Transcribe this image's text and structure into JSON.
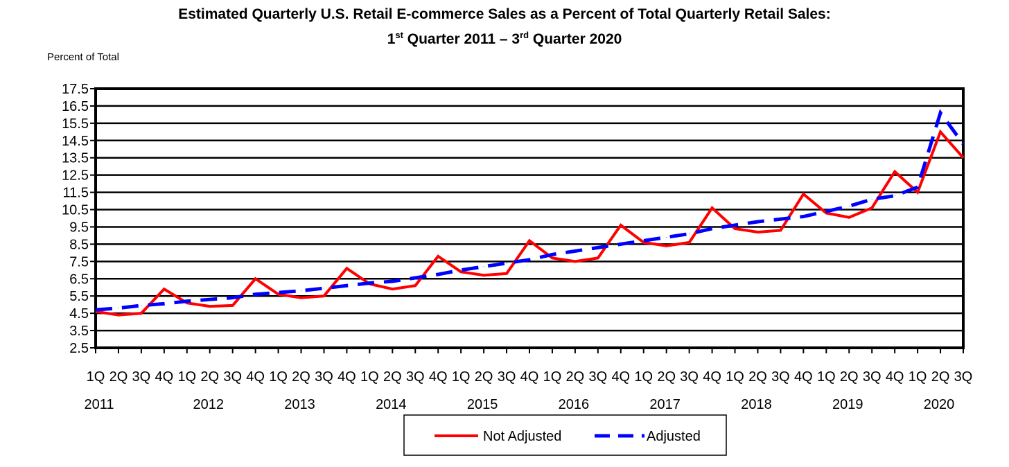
{
  "title_line1": "Estimated Quarterly U.S. Retail E-commerce Sales as a Percent of Total Quarterly Retail Sales:",
  "title_line2": {
    "part1": "1",
    "sup1": "st",
    "part2": " Quarter 2011 – 3",
    "sup2": "rd",
    "part3": " Quarter 2020"
  },
  "chart_data": {
    "type": "line",
    "title": "Estimated Quarterly U.S. Retail E-commerce Sales as a Percent of Total Quarterly Retail Sales: 1st Quarter 2011 – 3rd Quarter 2020",
    "ylabel": "Percent of Total",
    "ylim": [
      2.5,
      17.5
    ],
    "yticks": [
      2.5,
      3.5,
      4.5,
      5.5,
      6.5,
      7.5,
      8.5,
      9.5,
      10.5,
      11.5,
      12.5,
      13.5,
      14.5,
      15.5,
      16.5,
      17.5
    ],
    "grid": true,
    "legend_position": "bottom-center",
    "quarter_labels": [
      "1Q",
      "2Q",
      "3Q",
      "4Q",
      "1Q",
      "2Q",
      "3Q",
      "4Q",
      "1Q",
      "2Q",
      "3Q",
      "4Q",
      "1Q",
      "2Q",
      "3Q",
      "4Q",
      "1Q",
      "2Q",
      "3Q",
      "4Q",
      "1Q",
      "2Q",
      "3Q",
      "4Q",
      "1Q",
      "2Q",
      "3Q",
      "4Q",
      "1Q",
      "2Q",
      "3Q",
      "4Q",
      "1Q",
      "2Q",
      "3Q",
      "4Q",
      "1Q",
      "2Q",
      "3Q"
    ],
    "year_labels": [
      "2011",
      "2012",
      "2013",
      "2014",
      "2015",
      "2016",
      "2017",
      "2018",
      "2019",
      "2020"
    ],
    "series": [
      {
        "name": "Not Adjusted",
        "color": "#ff0000",
        "style": "solid",
        "values": [
          4.6,
          4.4,
          4.5,
          5.9,
          5.1,
          4.9,
          4.95,
          6.5,
          5.6,
          5.4,
          5.5,
          7.1,
          6.2,
          5.9,
          6.1,
          7.8,
          6.9,
          6.7,
          6.8,
          8.7,
          7.7,
          7.5,
          7.7,
          9.6,
          8.6,
          8.4,
          8.6,
          10.6,
          9.4,
          9.2,
          9.3,
          11.4,
          10.3,
          10.05,
          10.6,
          12.7,
          11.5,
          15.0,
          13.5
        ]
      },
      {
        "name": "Adjusted",
        "color": "#0000ff",
        "style": "dashed",
        "values": [
          4.7,
          4.8,
          4.95,
          5.05,
          5.2,
          5.3,
          5.4,
          5.6,
          5.7,
          5.8,
          5.95,
          6.1,
          6.25,
          6.35,
          6.55,
          6.75,
          7.0,
          7.2,
          7.4,
          7.6,
          7.9,
          8.1,
          8.3,
          8.5,
          8.7,
          8.9,
          9.1,
          9.4,
          9.6,
          9.8,
          9.95,
          10.1,
          10.4,
          10.7,
          11.1,
          11.3,
          11.8,
          16.1,
          14.3
        ]
      }
    ]
  }
}
